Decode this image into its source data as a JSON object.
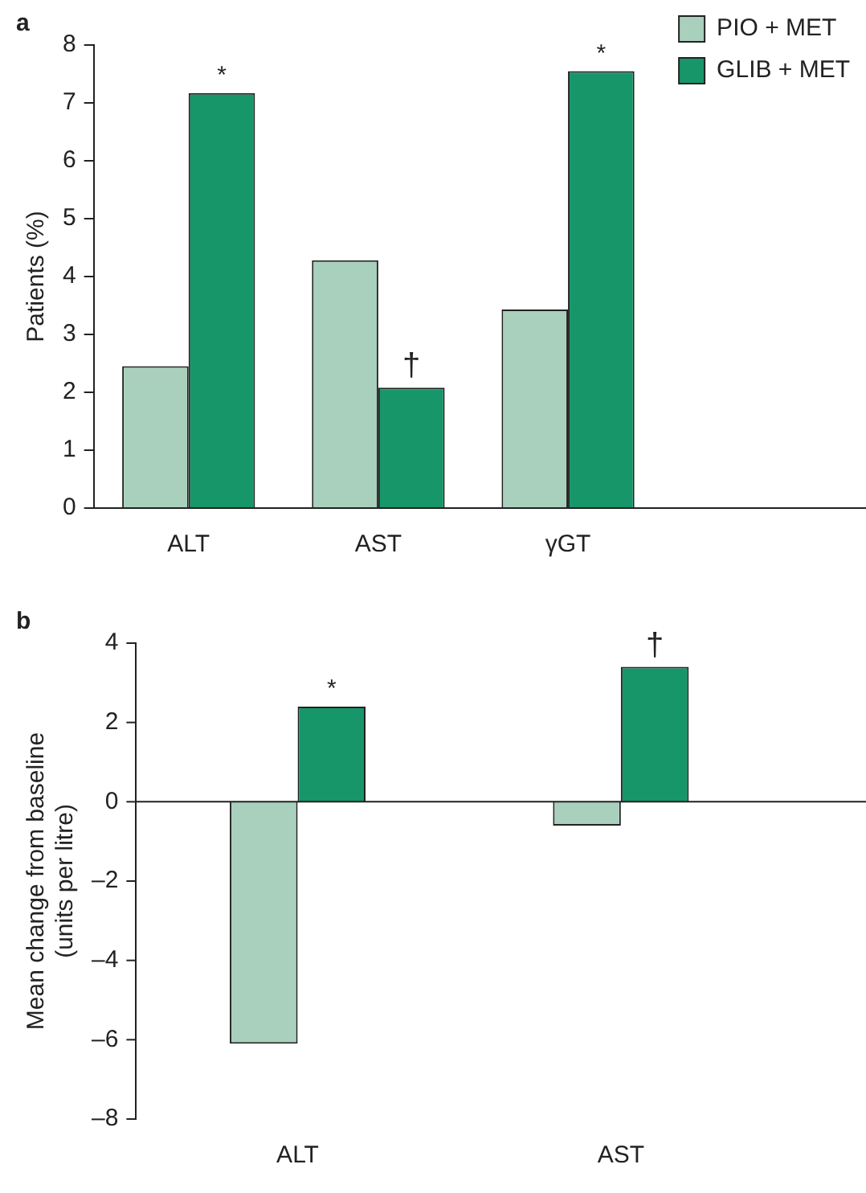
{
  "chart_data": [
    {
      "type": "bar",
      "title": "a",
      "ylabel": "Patients (%)",
      "categories": [
        "ALT",
        "AST",
        "γGT"
      ],
      "series": [
        {
          "name": "PIO + MET",
          "color": "#a8d0bc",
          "values": [
            2.45,
            4.28,
            3.43
          ]
        },
        {
          "name": "GLIB + MET",
          "color": "#17966a",
          "values": [
            7.17,
            2.08,
            7.55
          ]
        }
      ],
      "ylim": [
        0,
        8
      ],
      "yticks": [
        0,
        1,
        2,
        3,
        4,
        5,
        6,
        7,
        8
      ],
      "grid": false,
      "legend": "top right",
      "annotations": [
        {
          "text": "*",
          "x": "ALT",
          "y": 7.17
        },
        {
          "text": "†",
          "x": "AST",
          "y": 2.08
        },
        {
          "text": "*",
          "x": "γGT",
          "y": 7.55
        }
      ]
    },
    {
      "type": "bar",
      "title": "b",
      "ylabel": "Mean change from baseline\n(units per litre)",
      "categories": [
        "ALT",
        "AST"
      ],
      "series": [
        {
          "color": "#a8d0bc",
          "values": [
            -6.1,
            -0.6
          ]
        },
        {
          "color": "#17966a",
          "values": [
            2.4,
            3.4
          ]
        }
      ],
      "ref_lines": [
        {
          "axis": "y",
          "value": 0
        }
      ],
      "ylim": [
        -8,
        4
      ],
      "yticks": [
        {
          "value": -8,
          "label": "–8"
        },
        {
          "value": -6,
          "label": "–6"
        },
        {
          "value": -4,
          "label": "–4"
        },
        {
          "value": -2,
          "label": "–2"
        },
        0,
        2,
        4
      ],
      "grid": false,
      "legend": false,
      "annotations": [
        {
          "text": "*",
          "x": "ALT",
          "y": 2.4
        },
        {
          "text": "†",
          "x": "AST",
          "y": 3.4
        }
      ]
    }
  ]
}
